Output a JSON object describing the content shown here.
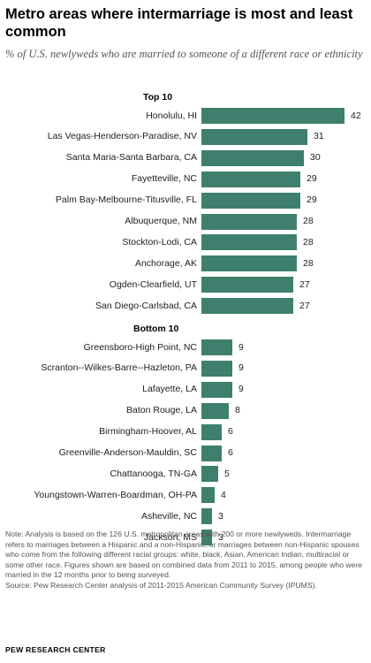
{
  "title": "Metro areas where intermarriage is most and least common",
  "subtitle": "% of U.S. newlyweds who are married to someone of a different race or ethnicity",
  "note": "Note: Analysis is based on the 126 U.S. metropolitan areas with 200 or more newlyweds. Intermarriage refers to marriages between a Hispanic and a non-Hispanic, or marriages between non-Hispanic spouses who come from the following different racial groups: white, black, Asian, American Indian, multiracial or some other race. Figures shown are based on combined data from 2011 to 2015, among people who were married in the 12 months prior to being surveyed.",
  "source": "Source: Pew Research Center analysis of 2011-2015 American Community Survey (IPUMS).",
  "brand": "PEW RESEARCH CENTER",
  "colors": {
    "bar": "#3f7f6e"
  },
  "chart_data": [
    {
      "type": "bar",
      "orientation": "horizontal",
      "title": "Top 10",
      "categories": [
        "Honolulu, HI",
        "Las Vegas-Henderson-Paradise, NV",
        "Santa Maria-Santa Barbara, CA",
        "Fayetteville, NC",
        "Palm Bay-Melbourne-Titusville, FL",
        "Albuquerque, NM",
        "Stockton-Lodi, CA",
        "Anchorage, AK",
        "Ogden-Clearfield, UT",
        "San Diego-Carlsbad, CA"
      ],
      "values": [
        42,
        31,
        30,
        29,
        29,
        28,
        28,
        28,
        27,
        27
      ],
      "xlim": [
        0,
        42
      ],
      "grid": false,
      "legend": false
    },
    {
      "type": "bar",
      "orientation": "horizontal",
      "title": "Bottom 10",
      "categories": [
        "Greensboro-High Point, NC",
        "Scranton--Wilkes-Barre--Hazleton, PA",
        "Lafayette, LA",
        "Baton Rouge, LA",
        "Birmingham-Hoover, AL",
        "Greenville-Anderson-Mauldin, SC",
        "Chattanooga, TN-GA",
        "Youngstown-Warren-Boardman, OH-PA",
        "Asheville, NC",
        "Jackson, MS"
      ],
      "values": [
        9,
        9,
        9,
        8,
        6,
        6,
        5,
        4,
        3,
        3
      ],
      "xlim": [
        0,
        42
      ],
      "grid": false,
      "legend": false
    }
  ]
}
